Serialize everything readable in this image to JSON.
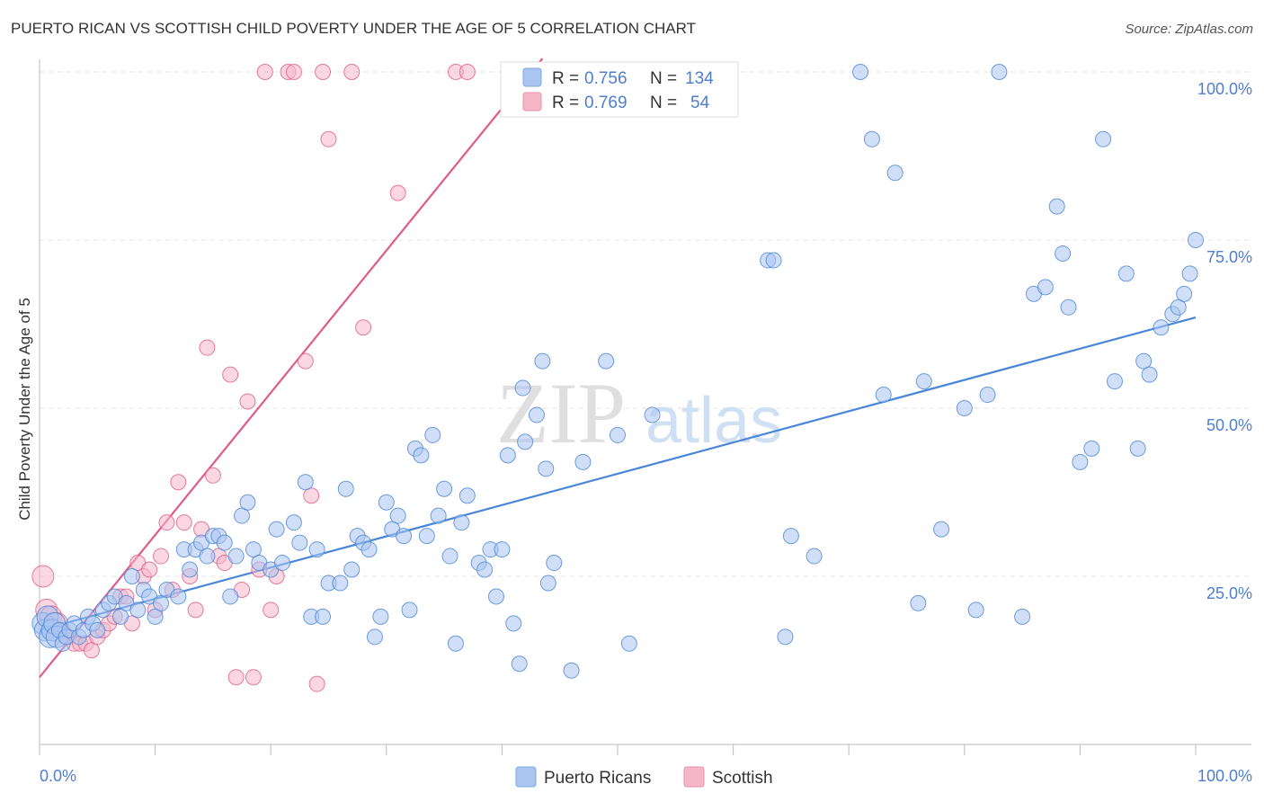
{
  "title": "PUERTO RICAN VS SCOTTISH CHILD POVERTY UNDER THE AGE OF 5 CORRELATION CHART",
  "source": "Source: ZipAtlas.com",
  "watermark": {
    "zip": "ZIP",
    "atlas": "atlas"
  },
  "legend": {
    "rows": [
      {
        "r_label": "R =",
        "r_value": "0.756",
        "n_label": "N =",
        "n_value": "134",
        "color": "#a9c5f0"
      },
      {
        "r_label": "R =",
        "r_value": "0.769",
        "n_label": "N =",
        "n_value": "54",
        "color": "#f5b7c8"
      }
    ]
  },
  "bottom_legend": [
    {
      "label": "Puerto Ricans",
      "color": "#a9c5f0"
    },
    {
      "label": "Scottish",
      "color": "#f5b7c8"
    }
  ],
  "chart_data": {
    "type": "scatter",
    "title": "PUERTO RICAN VS SCOTTISH CHILD POVERTY UNDER THE AGE OF 5 CORRELATION CHART",
    "xlabel": "",
    "ylabel": "Child Poverty Under the Age of 5",
    "xlim": [
      0,
      100
    ],
    "ylim": [
      0,
      102
    ],
    "x_tick_labels": [
      {
        "value": 0,
        "label": "0.0%"
      },
      {
        "value": 100,
        "label": "100.0%"
      }
    ],
    "y_tick_labels": [
      {
        "value": 25,
        "label": "25.0%"
      },
      {
        "value": 50,
        "label": "50.0%"
      },
      {
        "value": 75,
        "label": "75.0%"
      },
      {
        "value": 100,
        "label": "100.0%"
      }
    ],
    "series": [
      {
        "name": "Puerto Ricans",
        "color": "#4a86d8",
        "fill": "#a9c5f0",
        "trend": {
          "x0": 0,
          "y0": 17,
          "x1": 100,
          "y1": 63.5
        },
        "points": [
          [
            0.3,
            18
          ],
          [
            0.5,
            17
          ],
          [
            0.7,
            19
          ],
          [
            0.9,
            16
          ],
          [
            1.1,
            17
          ],
          [
            1.3,
            18
          ],
          [
            1.5,
            16
          ],
          [
            1.7,
            17
          ],
          [
            2,
            15
          ],
          [
            2.3,
            16
          ],
          [
            2.6,
            17
          ],
          [
            3,
            18
          ],
          [
            3.4,
            16
          ],
          [
            3.8,
            17
          ],
          [
            4.2,
            19
          ],
          [
            4.6,
            18
          ],
          [
            5,
            17
          ],
          [
            5.5,
            20
          ],
          [
            6,
            21
          ],
          [
            6.5,
            22
          ],
          [
            7,
            19
          ],
          [
            7.5,
            21
          ],
          [
            8,
            25
          ],
          [
            8.5,
            20
          ],
          [
            9,
            23
          ],
          [
            9.5,
            22
          ],
          [
            10,
            19
          ],
          [
            10.5,
            21
          ],
          [
            11,
            23
          ],
          [
            12,
            22
          ],
          [
            12.5,
            29
          ],
          [
            13,
            26
          ],
          [
            13.5,
            29
          ],
          [
            14,
            30
          ],
          [
            14.5,
            28
          ],
          [
            15,
            31
          ],
          [
            15.5,
            31
          ],
          [
            16,
            30
          ],
          [
            16.5,
            22
          ],
          [
            17,
            28
          ],
          [
            17.5,
            34
          ],
          [
            18,
            36
          ],
          [
            18.5,
            29
          ],
          [
            19,
            27
          ],
          [
            20,
            26
          ],
          [
            20.5,
            32
          ],
          [
            21,
            27
          ],
          [
            22,
            33
          ],
          [
            22.5,
            30
          ],
          [
            23,
            39
          ],
          [
            23.5,
            19
          ],
          [
            24,
            29
          ],
          [
            24.5,
            19
          ],
          [
            25,
            24
          ],
          [
            26,
            24
          ],
          [
            26.5,
            38
          ],
          [
            27,
            26
          ],
          [
            27.5,
            31
          ],
          [
            28,
            30
          ],
          [
            28.5,
            29
          ],
          [
            29,
            16
          ],
          [
            29.5,
            19
          ],
          [
            30,
            36
          ],
          [
            30.5,
            32
          ],
          [
            31,
            34
          ],
          [
            31.5,
            31
          ],
          [
            32,
            20
          ],
          [
            32.5,
            44
          ],
          [
            33,
            43
          ],
          [
            33.5,
            31
          ],
          [
            34,
            46
          ],
          [
            34.5,
            34
          ],
          [
            35,
            38
          ],
          [
            35.5,
            28
          ],
          [
            36,
            15
          ],
          [
            36.5,
            33
          ],
          [
            37,
            37
          ],
          [
            38,
            27
          ],
          [
            38.5,
            26
          ],
          [
            39,
            29
          ],
          [
            39.5,
            22
          ],
          [
            40,
            29
          ],
          [
            40.5,
            43
          ],
          [
            41,
            18
          ],
          [
            41.5,
            12
          ],
          [
            41.8,
            53
          ],
          [
            42,
            45
          ],
          [
            43,
            49
          ],
          [
            43.5,
            57
          ],
          [
            43.8,
            41
          ],
          [
            44,
            24
          ],
          [
            44.5,
            27
          ],
          [
            46,
            11
          ],
          [
            47,
            42
          ],
          [
            49,
            57
          ],
          [
            50,
            46
          ],
          [
            51,
            15
          ],
          [
            53,
            49
          ],
          [
            63,
            72
          ],
          [
            63.5,
            72
          ],
          [
            64.5,
            16
          ],
          [
            65,
            31
          ],
          [
            67,
            28
          ],
          [
            71,
            100
          ],
          [
            72,
            90
          ],
          [
            73,
            52
          ],
          [
            74,
            85
          ],
          [
            76,
            21
          ],
          [
            76.5,
            54
          ],
          [
            78,
            32
          ],
          [
            80,
            50
          ],
          [
            81,
            20
          ],
          [
            82,
            52
          ],
          [
            83,
            100
          ],
          [
            85,
            19
          ],
          [
            86,
            67
          ],
          [
            87,
            68
          ],
          [
            88,
            80
          ],
          [
            88.5,
            73
          ],
          [
            89,
            65
          ],
          [
            90,
            42
          ],
          [
            91,
            44
          ],
          [
            92,
            90
          ],
          [
            93,
            54
          ],
          [
            94,
            70
          ],
          [
            95,
            44
          ],
          [
            95.5,
            57
          ],
          [
            96,
            55
          ],
          [
            97,
            62
          ],
          [
            98,
            64
          ],
          [
            98.5,
            65
          ],
          [
            99,
            67
          ],
          [
            99.5,
            70
          ],
          [
            100,
            75
          ]
        ]
      },
      {
        "name": "Scottish",
        "color": "#e05b89",
        "fill": "#f5b7c8",
        "trend": {
          "x0": 0,
          "y0": 10,
          "x1": 43.5,
          "y1": 102
        },
        "points": [
          [
            0.3,
            25
          ],
          [
            0.6,
            20
          ],
          [
            1,
            19
          ],
          [
            1.5,
            18
          ],
          [
            2,
            17
          ],
          [
            2.5,
            16
          ],
          [
            3,
            15
          ],
          [
            3.5,
            15
          ],
          [
            4,
            15
          ],
          [
            4.5,
            14
          ],
          [
            5,
            16
          ],
          [
            5.5,
            17
          ],
          [
            6,
            18
          ],
          [
            6.5,
            19
          ],
          [
            7,
            22
          ],
          [
            7.5,
            22
          ],
          [
            8,
            18
          ],
          [
            8.5,
            27
          ],
          [
            9,
            25
          ],
          [
            9.5,
            26
          ],
          [
            10,
            20
          ],
          [
            10.5,
            28
          ],
          [
            11,
            33
          ],
          [
            11.5,
            23
          ],
          [
            12,
            39
          ],
          [
            12.5,
            33
          ],
          [
            13,
            25
          ],
          [
            13.5,
            20
          ],
          [
            14,
            32
          ],
          [
            14.5,
            59
          ],
          [
            15,
            40
          ],
          [
            15.5,
            28
          ],
          [
            16,
            27
          ],
          [
            16.5,
            55
          ],
          [
            17,
            10
          ],
          [
            17.5,
            23
          ],
          [
            18,
            51
          ],
          [
            18.5,
            10
          ],
          [
            19,
            26
          ],
          [
            19.5,
            100
          ],
          [
            20,
            20
          ],
          [
            20.5,
            25
          ],
          [
            21.5,
            100
          ],
          [
            22,
            100
          ],
          [
            23,
            57
          ],
          [
            23.5,
            37
          ],
          [
            24,
            9
          ],
          [
            24.5,
            100
          ],
          [
            25,
            90
          ],
          [
            27,
            100
          ],
          [
            28,
            62
          ],
          [
            31,
            82
          ],
          [
            36,
            100
          ],
          [
            37,
            100
          ]
        ]
      }
    ]
  }
}
